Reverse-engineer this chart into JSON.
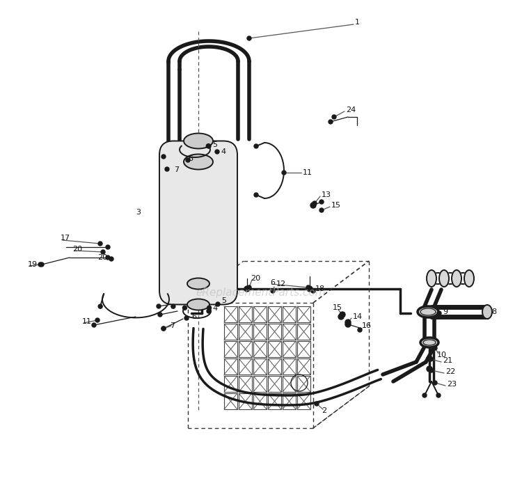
{
  "background_color": "#ffffff",
  "watermark_text": "eReplacementParts.com",
  "watermark_color": "#bbbbbb",
  "watermark_alpha": 0.6,
  "fig_width": 7.5,
  "fig_height": 7.14,
  "dpi": 100,
  "line_color": "#1a1a1a",
  "label_fontsize": 8.0
}
